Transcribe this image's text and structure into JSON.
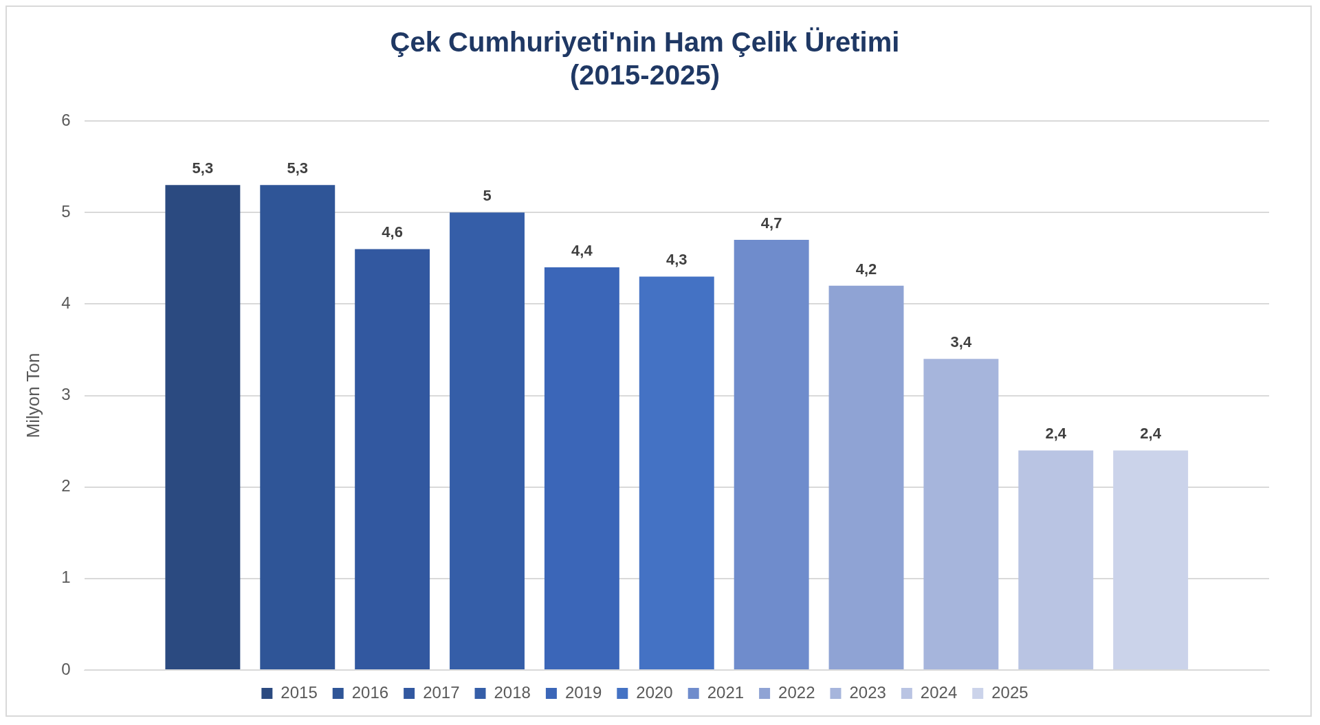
{
  "chart_data": {
    "type": "bar",
    "title": "Çek Cumhuriyeti'nin Ham Çelik Üretimi\n(2015-2025)",
    "ylabel": "Milyon Ton",
    "categories": [
      null
    ],
    "series": [
      {
        "name": "2015",
        "color": "#2b4a80",
        "values": [
          5.3
        ],
        "value_labels": [
          "5,3"
        ]
      },
      {
        "name": "2016",
        "color": "#2f5597",
        "values": [
          5.3
        ],
        "value_labels": [
          "5,3"
        ]
      },
      {
        "name": "2017",
        "color": "#3258a0",
        "values": [
          4.6
        ],
        "value_labels": [
          "4,6"
        ]
      },
      {
        "name": "2018",
        "color": "#355ea8",
        "values": [
          5
        ],
        "value_labels": [
          "5"
        ]
      },
      {
        "name": "2019",
        "color": "#3b66b8",
        "values": [
          4.4
        ],
        "value_labels": [
          "4,4"
        ]
      },
      {
        "name": "2020",
        "color": "#4472c4",
        "values": [
          4.3
        ],
        "value_labels": [
          "4,3"
        ]
      },
      {
        "name": "2021",
        "color": "#6f8ccc",
        "values": [
          4.7
        ],
        "value_labels": [
          "4,7"
        ]
      },
      {
        "name": "2022",
        "color": "#8fa3d4",
        "values": [
          4.2
        ],
        "value_labels": [
          "4,2"
        ]
      },
      {
        "name": "2023",
        "color": "#a6b5dc",
        "values": [
          3.4
        ],
        "value_labels": [
          "3,4"
        ]
      },
      {
        "name": "2024",
        "color": "#b9c4e3",
        "values": [
          2.4
        ],
        "value_labels": [
          "2,4"
        ]
      },
      {
        "name": "2025",
        "color": "#cbd3ea",
        "values": [
          2.4
        ],
        "value_labels": [
          "2,4"
        ]
      }
    ],
    "ylim": [
      0,
      6
    ],
    "yticks": [
      0,
      1,
      2,
      3,
      4,
      5,
      6
    ],
    "grid": "y",
    "legend": "bottom"
  }
}
